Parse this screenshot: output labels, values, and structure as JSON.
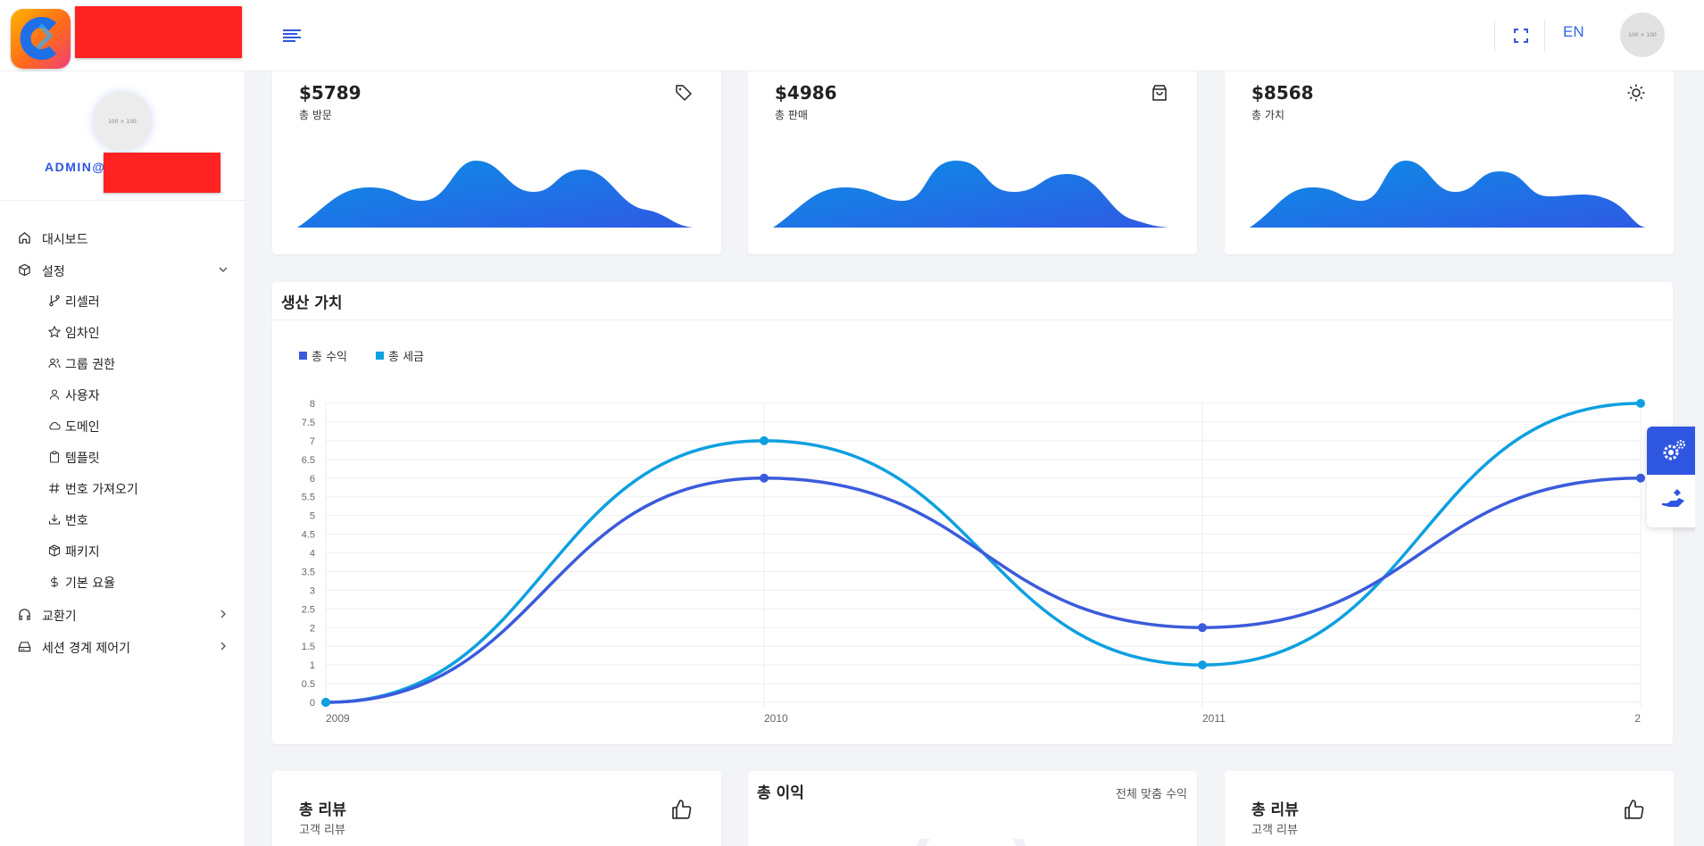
{
  "header": {
    "language": "EN",
    "avatar_text": "100 × 100"
  },
  "sidebar": {
    "avatar_text": "100 × 100",
    "user_email_prefix": "ADMIN@",
    "items": [
      {
        "label": "대시보드",
        "icon": "home-icon"
      },
      {
        "label": "설정",
        "icon": "box-icon"
      },
      {
        "label": "교환기",
        "icon": "headphones-icon"
      },
      {
        "label": "세션 경계 제어기",
        "icon": "hard-drive-icon"
      }
    ],
    "sub_items": [
      {
        "label": "리셀러",
        "icon": "git-branch-icon"
      },
      {
        "label": "임차인",
        "icon": "star-icon"
      },
      {
        "label": "그룹 권한",
        "icon": "users-icon"
      },
      {
        "label": "사용자",
        "icon": "user-icon"
      },
      {
        "label": "도메인",
        "icon": "cloud-icon"
      },
      {
        "label": "템플릿",
        "icon": "clipboard-icon"
      },
      {
        "label": "번호 가져오기",
        "icon": "hash-icon"
      },
      {
        "label": "번호",
        "icon": "download-icon"
      },
      {
        "label": "패키지",
        "icon": "package-icon"
      },
      {
        "label": "기본 요율",
        "icon": "dollar-icon"
      }
    ]
  },
  "stats": [
    {
      "value": "$5789",
      "label": "총 방문",
      "icon": "tag-icon"
    },
    {
      "value": "$4986",
      "label": "총 판매",
      "icon": "shopping-bag-icon"
    },
    {
      "value": "$8568",
      "label": "총 가치",
      "icon": "sun-icon"
    }
  ],
  "production": {
    "title": "생산 가치"
  },
  "chart_data": {
    "type": "line",
    "title": "생산 가치",
    "x": [
      "2009",
      "2010",
      "2011",
      "2"
    ],
    "series": [
      {
        "name": "총 수익",
        "color": "#3b5bdb",
        "values": [
          0,
          6,
          2,
          6
        ]
      },
      {
        "name": "총 세금",
        "color": "#0ea0e0",
        "values": [
          0,
          7,
          1,
          8
        ]
      }
    ],
    "ylim": [
      0,
      8
    ],
    "yticks": [
      "0",
      "0.5",
      "1",
      "1.5",
      "2",
      "2.5",
      "3",
      "3.5",
      "4",
      "4.5",
      "5",
      "5.5",
      "6",
      "6.5",
      "7",
      "7.5",
      "8"
    ],
    "grid": true,
    "legend_position": "top-left",
    "curve": "smooth"
  },
  "bottom": {
    "reviews_left": {
      "title": "총 리뷰",
      "subtitle": "고객 리뷰",
      "icon": "thumbs-up-icon"
    },
    "profit": {
      "title": "총 이익",
      "link": "전체 맞춤 수익"
    },
    "reviews_right": {
      "title": "총 리뷰",
      "subtitle": "고객 리뷰",
      "icon": "thumbs-up-icon"
    }
  },
  "colors": {
    "accent": "#2f56e0",
    "wave_start": "#0a8fe6",
    "wave_end": "#2f5ae4",
    "redaction": "#ff2222"
  }
}
